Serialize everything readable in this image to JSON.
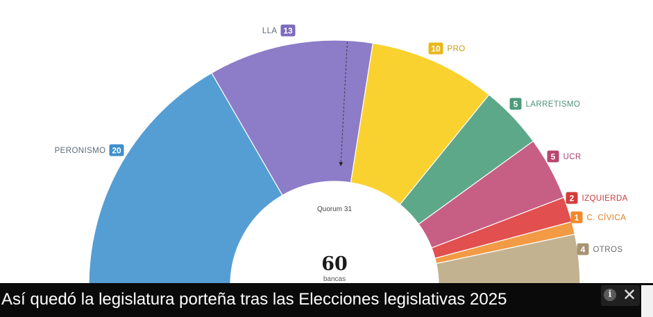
{
  "chart_data": {
    "type": "pie",
    "variant": "parliament-half-donut",
    "categories": [
      "PERONISMO",
      "LLA",
      "PRO",
      "LARRETISMO",
      "UCR",
      "IZQUIERDA",
      "C. CÍVICA",
      "OTROS"
    ],
    "values": [
      20,
      13,
      10,
      5,
      5,
      2,
      1,
      4
    ],
    "colors": [
      "#559ed4",
      "#8d7cc7",
      "#fad230",
      "#5ea88a",
      "#c75f84",
      "#e14f4f",
      "#f29a44",
      "#c3b290"
    ],
    "badge_colors": [
      "#3e8fcc",
      "#7d6bbd",
      "#e8b81a",
      "#4d9b7b",
      "#b8466e",
      "#d23b3b",
      "#f08a2a",
      "#a79472"
    ],
    "label_colors": [
      "#5b6a7a",
      "#5b6a7a",
      "#c49a10",
      "#4d8f75",
      "#a8406a",
      "#c73b3b",
      "#e07b20",
      "#6b6b6b"
    ],
    "total": "60",
    "total_label": "bancas",
    "quorum": {
      "label": "Quorum 31",
      "value": 31
    }
  },
  "caption": {
    "text": "Así quedó la legislatura porteña tras las Elecciones legislativas 2025"
  },
  "ad": {
    "info_icon": "info-icon",
    "close_icon": "close-icon",
    "close_glyph": "✕",
    "info_glyph": "i"
  }
}
